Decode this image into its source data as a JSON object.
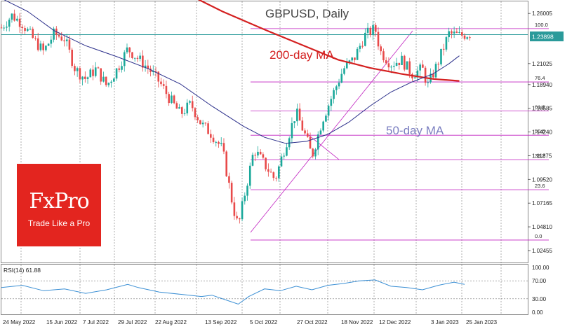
{
  "chart_data": {
    "type": "candlestick",
    "symbol_title": "GBPUSD, Daily",
    "price_axis": {
      "min": 1.012,
      "max": 1.272,
      "ticks": [
        "1.26005",
        "1.23898",
        "1.21025",
        "1.18940",
        "1.16585",
        "1.14240",
        "1.11875",
        "1.09520",
        "1.07165",
        "1.04810",
        "1.02455"
      ],
      "current_price": "1.23898"
    },
    "date_labels": [
      "24 May 2022",
      "15 Jun 2022",
      "7 Jul 2022",
      "29 Jul 2022",
      "22 Aug 2022",
      "13 Sep 2022",
      "5 Oct 2022",
      "27 Oct 2022",
      "18 Nov 2022",
      "12 Dec 2022",
      "3 Jan 2023",
      "25 Jan 2023"
    ],
    "fib_levels": [
      {
        "label": "100.0",
        "price": 1.245
      },
      {
        "label": "76.4",
        "price": 1.192
      },
      {
        "label": "61.8",
        "price": 1.1633
      },
      {
        "label": "50.0",
        "price": 1.1391
      },
      {
        "label": "38.2",
        "price": 1.1149
      },
      {
        "label": "23.6",
        "price": 1.085
      },
      {
        "label": "0.0",
        "price": 1.035
      }
    ],
    "annotations": {
      "ma200": "200-day MA",
      "ma50": "50-day MA"
    },
    "ma200_points": [
      [
        0.37,
        1.275
      ],
      [
        0.42,
        1.262
      ],
      [
        0.5,
        1.244
      ],
      [
        0.57,
        1.229
      ],
      [
        0.64,
        1.214
      ],
      [
        0.7,
        1.206
      ],
      [
        0.76,
        1.2
      ],
      [
        0.82,
        1.195
      ],
      [
        0.87,
        1.193
      ]
    ],
    "ma50_points": [
      [
        0.0,
        1.275
      ],
      [
        0.05,
        1.262
      ],
      [
        0.1,
        1.243
      ],
      [
        0.16,
        1.228
      ],
      [
        0.22,
        1.217
      ],
      [
        0.28,
        1.205
      ],
      [
        0.34,
        1.19
      ],
      [
        0.4,
        1.168
      ],
      [
        0.46,
        1.148
      ],
      [
        0.5,
        1.137
      ],
      [
        0.54,
        1.131
      ],
      [
        0.58,
        1.133
      ],
      [
        0.62,
        1.14
      ],
      [
        0.66,
        1.152
      ],
      [
        0.7,
        1.168
      ],
      [
        0.74,
        1.182
      ],
      [
        0.78,
        1.192
      ],
      [
        0.82,
        1.2
      ],
      [
        0.85,
        1.21
      ],
      [
        0.87,
        1.218
      ]
    ],
    "close_path": [
      [
        0.0,
        1.246
      ],
      [
        0.02,
        1.258
      ],
      [
        0.04,
        1.25
      ],
      [
        0.06,
        1.235
      ],
      [
        0.08,
        1.222
      ],
      [
        0.1,
        1.24
      ],
      [
        0.12,
        1.235
      ],
      [
        0.14,
        1.205
      ],
      [
        0.16,
        1.195
      ],
      [
        0.18,
        1.205
      ],
      [
        0.2,
        1.188
      ],
      [
        0.22,
        1.205
      ],
      [
        0.24,
        1.225
      ],
      [
        0.26,
        1.215
      ],
      [
        0.28,
        1.205
      ],
      [
        0.3,
        1.192
      ],
      [
        0.32,
        1.175
      ],
      [
        0.34,
        1.16
      ],
      [
        0.36,
        1.17
      ],
      [
        0.38,
        1.15
      ],
      [
        0.4,
        1.14
      ],
      [
        0.42,
        1.125
      ],
      [
        0.44,
        1.068
      ],
      [
        0.45,
        1.048
      ],
      [
        0.46,
        1.075
      ],
      [
        0.48,
        1.125
      ],
      [
        0.5,
        1.11
      ],
      [
        0.52,
        1.095
      ],
      [
        0.54,
        1.13
      ],
      [
        0.56,
        1.162
      ],
      [
        0.58,
        1.135
      ],
      [
        0.59,
        1.118
      ],
      [
        0.61,
        1.155
      ],
      [
        0.63,
        1.18
      ],
      [
        0.65,
        1.205
      ],
      [
        0.67,
        1.215
      ],
      [
        0.69,
        1.238
      ],
      [
        0.71,
        1.245
      ],
      [
        0.72,
        1.222
      ],
      [
        0.74,
        1.21
      ],
      [
        0.76,
        1.214
      ],
      [
        0.78,
        1.2
      ],
      [
        0.8,
        1.205
      ],
      [
        0.81,
        1.188
      ],
      [
        0.83,
        1.212
      ],
      [
        0.85,
        1.24
      ],
      [
        0.87,
        1.238
      ],
      [
        0.89,
        1.24
      ]
    ],
    "rsi": {
      "label": "RSI(14) 61.88",
      "value": 61.88,
      "levels": [
        "100.00",
        "70.00",
        "30.00",
        "0.00"
      ],
      "points": [
        [
          0.0,
          55
        ],
        [
          0.04,
          60
        ],
        [
          0.08,
          48
        ],
        [
          0.12,
          52
        ],
        [
          0.16,
          42
        ],
        [
          0.2,
          50
        ],
        [
          0.24,
          62
        ],
        [
          0.26,
          55
        ],
        [
          0.3,
          45
        ],
        [
          0.34,
          40
        ],
        [
          0.38,
          35
        ],
        [
          0.4,
          38
        ],
        [
          0.43,
          26
        ],
        [
          0.45,
          18
        ],
        [
          0.47,
          35
        ],
        [
          0.5,
          52
        ],
        [
          0.53,
          48
        ],
        [
          0.56,
          58
        ],
        [
          0.59,
          50
        ],
        [
          0.62,
          60
        ],
        [
          0.65,
          64
        ],
        [
          0.68,
          70
        ],
        [
          0.71,
          72
        ],
        [
          0.74,
          58
        ],
        [
          0.77,
          55
        ],
        [
          0.8,
          50
        ],
        [
          0.83,
          60
        ],
        [
          0.86,
          67
        ],
        [
          0.88,
          62
        ]
      ]
    },
    "colors": {
      "bull": "#1aa89a",
      "bear": "#e84a4a",
      "ma200": "#d42020",
      "ma50": "#2a2e8a",
      "fib": "#c020c0",
      "current_line": "#2a9a9a",
      "rsi_line": "#3b8fd4"
    }
  },
  "logo": {
    "brand": "FxPro",
    "tagline": "Trade Like a Pro"
  }
}
